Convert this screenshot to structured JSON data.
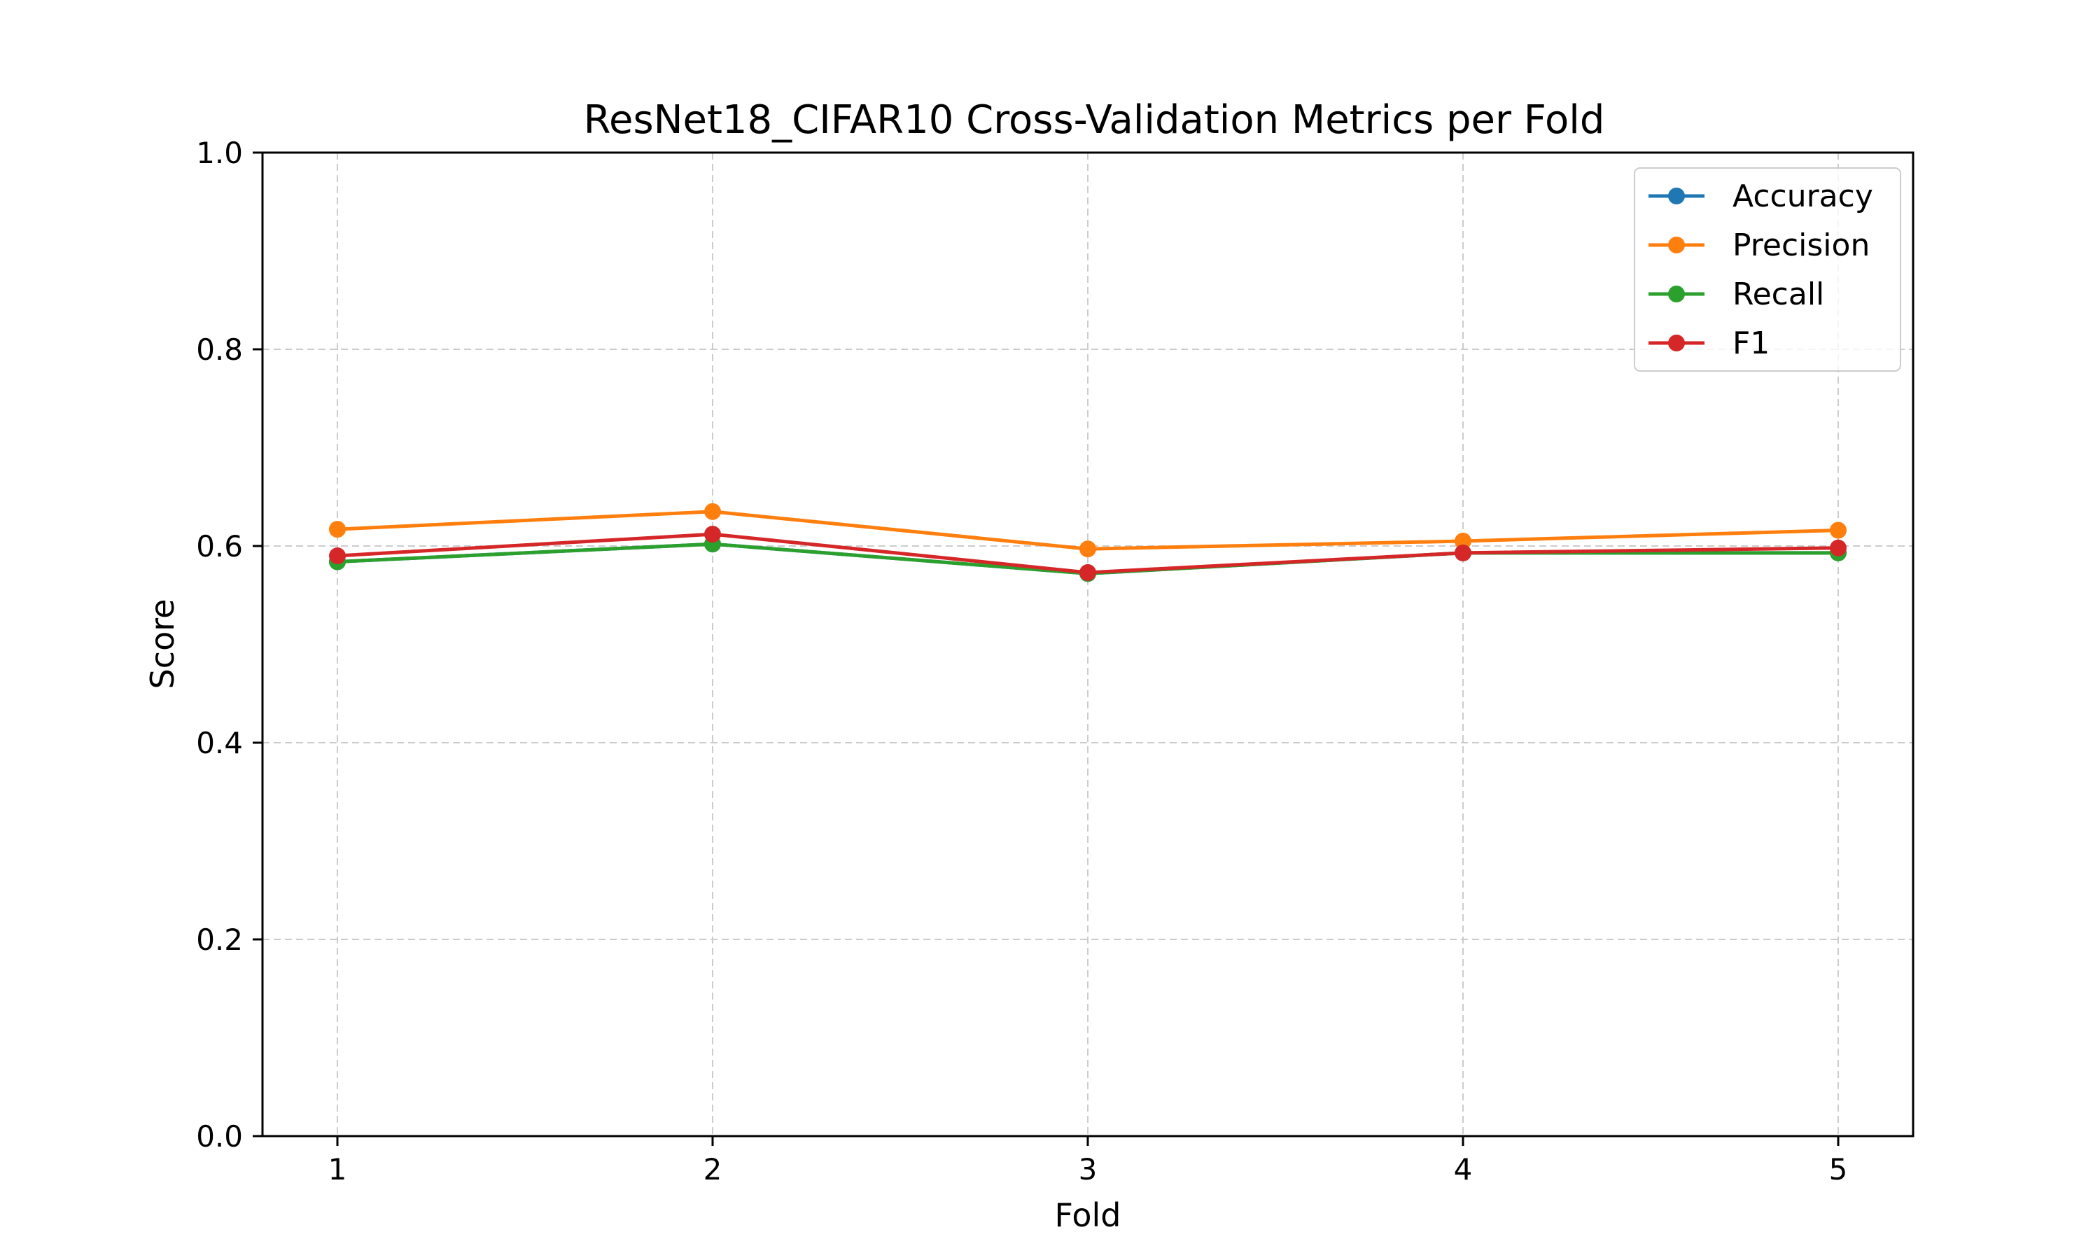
{
  "chart_data": {
    "type": "line",
    "title": "ResNet18_CIFAR10 Cross-Validation Metrics per Fold",
    "xlabel": "Fold",
    "ylabel": "Score",
    "x": [
      1,
      2,
      3,
      4,
      5
    ],
    "x_ticks": [
      "1",
      "2",
      "3",
      "4",
      "5"
    ],
    "ylim": [
      0.0,
      1.0
    ],
    "y_ticks": [
      "0.0",
      "0.2",
      "0.4",
      "0.6",
      "0.8",
      "1.0"
    ],
    "grid": true,
    "legend_position": "top-right",
    "series": [
      {
        "name": "Accuracy",
        "color": "#1f77b4",
        "values": [
          0.584,
          0.602,
          0.572,
          0.593,
          0.593
        ]
      },
      {
        "name": "Precision",
        "color": "#ff7f0e",
        "values": [
          0.617,
          0.635,
          0.597,
          0.605,
          0.616
        ]
      },
      {
        "name": "Recall",
        "color": "#2ca02c",
        "values": [
          0.584,
          0.602,
          0.572,
          0.593,
          0.593
        ]
      },
      {
        "name": "F1",
        "color": "#d62728",
        "values": [
          0.59,
          0.612,
          0.573,
          0.593,
          0.598
        ]
      }
    ]
  }
}
